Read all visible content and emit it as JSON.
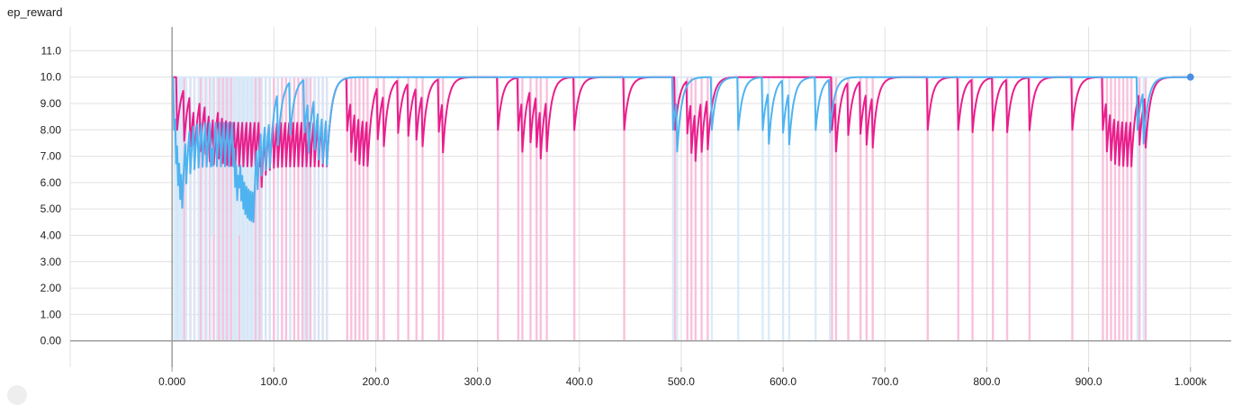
{
  "chart_data": {
    "type": "line",
    "title": "ep_reward",
    "xlabel": "",
    "ylabel": "",
    "xlim": [
      -100,
      1040
    ],
    "ylim": [
      -1.0,
      11.9
    ],
    "grid": true,
    "x_ticks": [
      {
        "value": 0,
        "label": "0.000"
      },
      {
        "value": 100,
        "label": "100.0"
      },
      {
        "value": 200,
        "label": "200.0"
      },
      {
        "value": 300,
        "label": "300.0"
      },
      {
        "value": 400,
        "label": "400.0"
      },
      {
        "value": 500,
        "label": "500.0"
      },
      {
        "value": 600,
        "label": "600.0"
      },
      {
        "value": 700,
        "label": "700.0"
      },
      {
        "value": 800,
        "label": "800.0"
      },
      {
        "value": 900,
        "label": "900.0"
      },
      {
        "value": 1000,
        "label": "1.000k"
      }
    ],
    "y_ticks": [
      {
        "value": 0,
        "label": "0.00"
      },
      {
        "value": 1,
        "label": "1.00"
      },
      {
        "value": 2,
        "label": "2.00"
      },
      {
        "value": 3,
        "label": "3.00"
      },
      {
        "value": 4,
        "label": "4.00"
      },
      {
        "value": 5,
        "label": "5.00"
      },
      {
        "value": 6,
        "label": "6.00"
      },
      {
        "value": 7,
        "label": "7.00"
      },
      {
        "value": 8,
        "label": "8.00"
      },
      {
        "value": 9,
        "label": "9.00"
      },
      {
        "value": 10,
        "label": "10.0"
      },
      {
        "value": 11,
        "label": "11.0"
      }
    ],
    "series": [
      {
        "color": "#e91e8c",
        "raw_color": "#f8bbd9",
        "smoothing": 0.8,
        "raw_drops": [
          [
            5,
            0
          ],
          [
            12,
            0
          ],
          [
            18,
            0
          ],
          [
            22,
            0
          ],
          [
            28,
            0
          ],
          [
            33,
            0
          ],
          [
            37,
            0
          ],
          [
            41,
            0
          ],
          [
            46,
            0
          ],
          [
            50,
            0
          ],
          [
            54,
            0
          ],
          [
            58,
            0
          ],
          [
            62,
            0
          ],
          [
            66,
            0
          ],
          [
            70,
            0
          ],
          [
            74,
            0
          ],
          [
            78,
            0
          ],
          [
            82,
            0
          ],
          [
            86,
            0
          ],
          [
            88,
            0
          ],
          [
            92,
            0
          ],
          [
            96,
            0
          ],
          [
            100,
            0
          ],
          [
            104,
            0
          ],
          [
            108,
            0
          ],
          [
            112,
            0
          ],
          [
            116,
            0
          ],
          [
            120,
            0
          ],
          [
            124,
            0
          ],
          [
            128,
            0
          ],
          [
            132,
            0
          ],
          [
            136,
            0
          ],
          [
            140,
            0
          ],
          [
            144,
            0
          ],
          [
            148,
            0
          ],
          [
            152,
            0
          ],
          [
            172,
            0
          ],
          [
            176,
            0
          ],
          [
            180,
            0
          ],
          [
            184,
            0
          ],
          [
            188,
            0
          ],
          [
            192,
            0
          ],
          [
            202,
            0
          ],
          [
            208,
            0
          ],
          [
            222,
            0
          ],
          [
            232,
            0
          ],
          [
            240,
            0
          ],
          [
            246,
            0
          ],
          [
            262,
            0
          ],
          [
            266,
            0
          ],
          [
            320,
            0
          ],
          [
            340,
            0
          ],
          [
            344,
            0
          ],
          [
            352,
            0
          ],
          [
            358,
            0
          ],
          [
            362,
            0
          ],
          [
            368,
            0
          ],
          [
            395,
            0
          ],
          [
            444,
            0
          ],
          [
            494,
            0
          ],
          [
            506,
            0
          ],
          [
            510,
            0
          ],
          [
            514,
            0
          ],
          [
            520,
            0
          ],
          [
            526,
            0
          ],
          [
            648,
            0
          ],
          [
            652,
            0
          ],
          [
            664,
            0
          ],
          [
            676,
            0
          ],
          [
            682,
            0
          ],
          [
            688,
            0
          ],
          [
            742,
            0
          ],
          [
            772,
            0
          ],
          [
            786,
            0
          ],
          [
            806,
            0
          ],
          [
            820,
            0
          ],
          [
            842,
            0
          ],
          [
            884,
            0
          ],
          [
            914,
            0
          ],
          [
            918,
            0
          ],
          [
            922,
            0
          ],
          [
            926,
            0
          ],
          [
            930,
            0
          ],
          [
            934,
            0
          ],
          [
            938,
            0
          ],
          [
            942,
            0
          ],
          [
            950,
            0
          ],
          [
            956,
            0
          ]
        ]
      },
      {
        "color": "#4fb3f0",
        "raw_color": "#d6ebf9",
        "smoothing": 0.8,
        "raw_drops": [
          [
            2,
            0
          ],
          [
            4,
            0
          ],
          [
            6,
            0
          ],
          [
            8,
            0
          ],
          [
            10,
            0
          ],
          [
            14,
            0
          ],
          [
            18,
            0
          ],
          [
            22,
            0
          ],
          [
            26,
            0
          ],
          [
            30,
            0
          ],
          [
            34,
            0
          ],
          [
            38,
            0
          ],
          [
            40,
            4
          ],
          [
            44,
            0
          ],
          [
            48,
            0
          ],
          [
            52,
            0
          ],
          [
            56,
            0
          ],
          [
            60,
            0
          ],
          [
            62,
            0
          ],
          [
            64,
            0
          ],
          [
            66,
            4
          ],
          [
            68,
            0
          ],
          [
            70,
            0
          ],
          [
            72,
            0
          ],
          [
            74,
            0
          ],
          [
            76,
            0
          ],
          [
            78,
            0
          ],
          [
            80,
            0
          ],
          [
            84,
            0
          ],
          [
            88,
            0
          ],
          [
            92,
            0
          ],
          [
            96,
            0
          ],
          [
            104,
            0
          ],
          [
            116,
            0
          ],
          [
            130,
            0
          ],
          [
            134,
            0
          ],
          [
            140,
            0
          ],
          [
            144,
            0
          ],
          [
            148,
            0
          ],
          [
            152,
            0
          ],
          [
            492,
            0
          ],
          [
            496,
            0
          ],
          [
            530,
            0
          ],
          [
            556,
            0
          ],
          [
            580,
            0
          ],
          [
            586,
            0
          ],
          [
            600,
            0
          ],
          [
            606,
            0
          ],
          [
            632,
            0
          ],
          [
            646,
            0
          ],
          [
            948,
            0
          ],
          [
            954,
            0
          ]
        ]
      }
    ],
    "end_marker": {
      "x": 1000,
      "y": 10,
      "color": "#4a90e2"
    }
  }
}
